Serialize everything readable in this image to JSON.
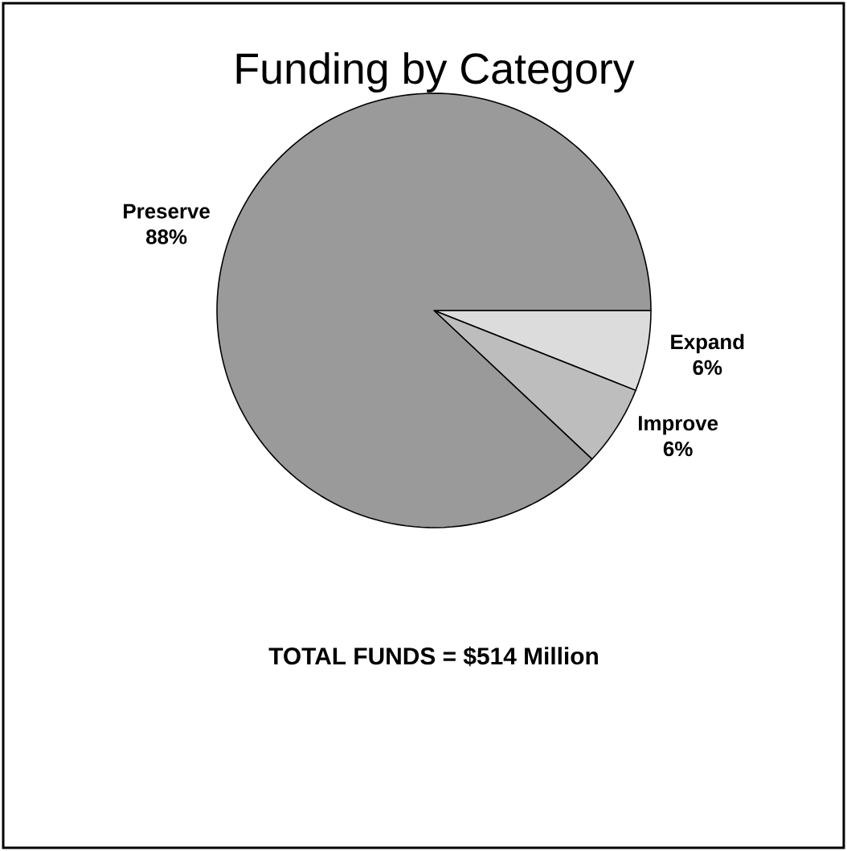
{
  "chart_data": {
    "type": "pie",
    "title": "Funding by Category",
    "categories": [
      "Expand",
      "Improve",
      "Preserve"
    ],
    "values": [
      6,
      6,
      88
    ],
    "value_labels": [
      "6%",
      "6%",
      "88%"
    ],
    "colors": [
      "#dcdcdc",
      "#bdbdbd",
      "#9a9a9a"
    ],
    "annotations": [
      "TOTAL FUNDS = $514 Million"
    ]
  }
}
